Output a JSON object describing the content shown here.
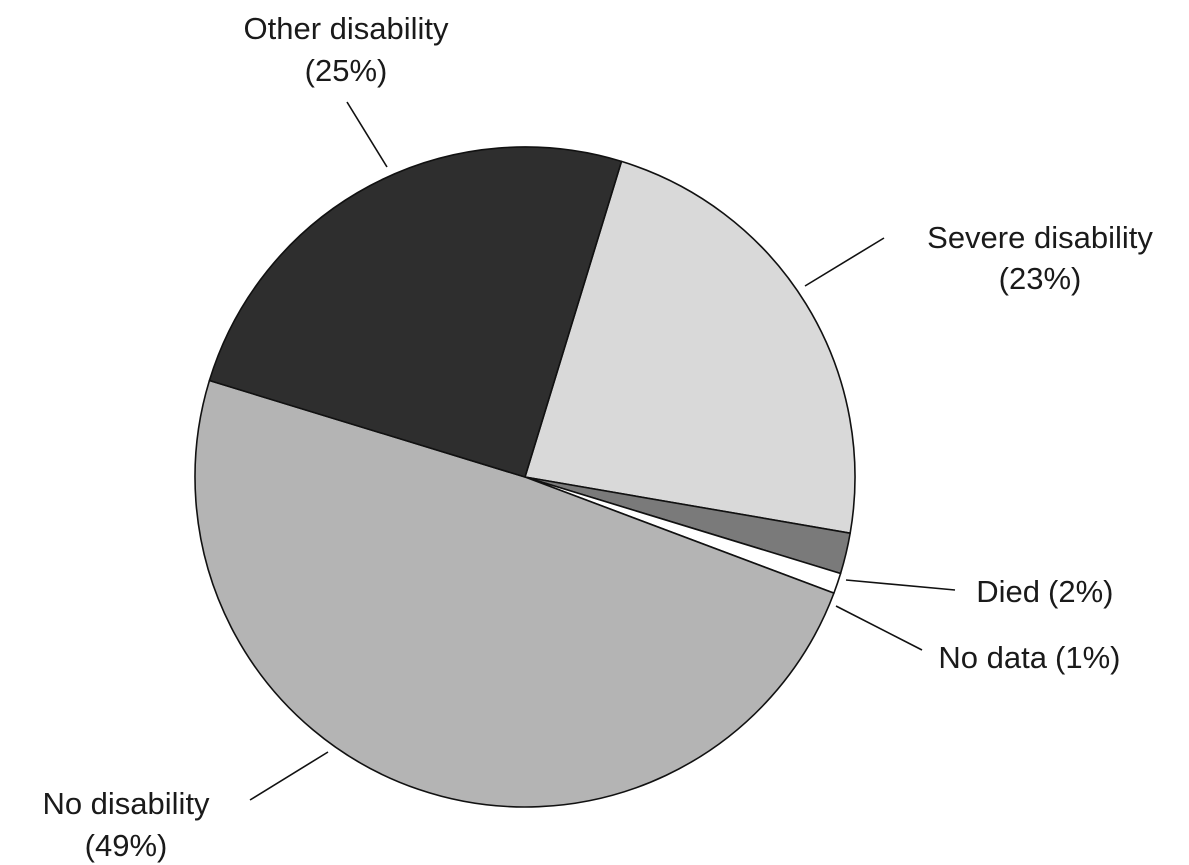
{
  "chart_data": {
    "type": "pie",
    "title": "",
    "start_angle_deg": 0,
    "direction": "clockwise",
    "slices": [
      {
        "label": "Severe disability",
        "pct_label": "(23%)",
        "value": 23,
        "color": "#d9d9d9"
      },
      {
        "label": "Died",
        "pct_label": "(2%)",
        "value": 2,
        "color": "#7a7a7a"
      },
      {
        "label": "No data",
        "pct_label": "(1%)",
        "value": 1,
        "color": "#ffffff"
      },
      {
        "label": "No disability",
        "pct_label": "(49%)",
        "value": 49,
        "color": "#b4b4b4"
      },
      {
        "label": "Other disability",
        "pct_label": "(25%)",
        "value": 25,
        "color": "#2e2e2e"
      }
    ]
  }
}
